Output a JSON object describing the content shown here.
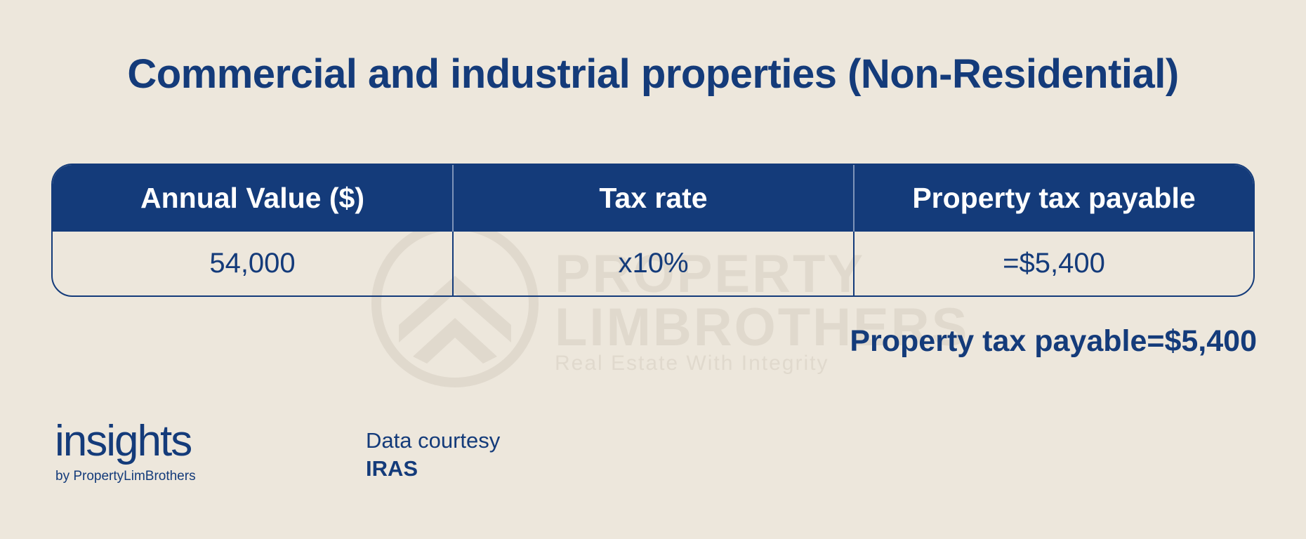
{
  "title": "Commercial and industrial properties (Non-Residential)",
  "table": {
    "headers": [
      "Annual Value ($)",
      "Tax rate",
      "Property tax payable"
    ],
    "rows": [
      [
        "54,000",
        "x10%",
        "=$5,400"
      ]
    ]
  },
  "summary": "Property tax payable=$5,400",
  "watermark": {
    "line1": "PROPERTY",
    "line2": "LIMBROTHERS",
    "tagline": "Real Estate With Integrity"
  },
  "logo": {
    "name": "insights",
    "byline": "by PropertyLimBrothers"
  },
  "credit": {
    "label": "Data courtesy",
    "source": "IRAS"
  },
  "colors": {
    "background": "#ede7dc",
    "brand_navy": "#143b7a",
    "header_text": "#ffffff"
  }
}
